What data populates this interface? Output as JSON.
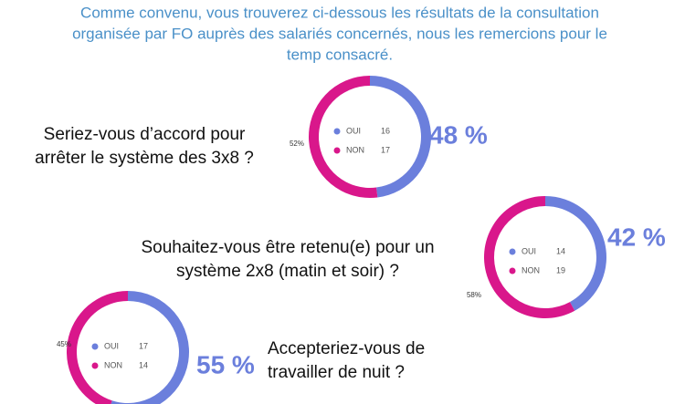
{
  "intro": [
    "Comme convenu, vous trouverez ci-dessous les résultats de la consultation",
    "organisée par FO auprès des salariés concernés, nous les remercions pour le",
    "temp consacré."
  ],
  "chart_data": [
    {
      "type": "donut",
      "question": [
        "Seriez-vous d’accord pour",
        "arrêter le système des 3x8 ?"
      ],
      "categories": [
        "OUI",
        "NON"
      ],
      "counts": [
        16,
        17
      ],
      "values": [
        48,
        52
      ],
      "value_labels": [
        "48 %",
        "52%"
      ],
      "colors": [
        "#6b7fdc",
        "#d9178b"
      ]
    },
    {
      "type": "donut",
      "question": [
        "Souhaitez-vous être retenu(e) pour un",
        "système 2x8 (matin et soir) ?"
      ],
      "categories": [
        "OUI",
        "NON"
      ],
      "counts": [
        14,
        19
      ],
      "values": [
        42,
        58
      ],
      "value_labels": [
        "42 %",
        "58%"
      ],
      "colors": [
        "#6b7fdc",
        "#d9178b"
      ]
    },
    {
      "type": "donut",
      "question": [
        "Accepteriez-vous de",
        "travailler de nuit ?"
      ],
      "categories": [
        "OUI",
        "NON"
      ],
      "counts": [
        17,
        14
      ],
      "values": [
        55,
        45
      ],
      "value_labels": [
        "55 %",
        "45%"
      ],
      "colors": [
        "#6b7fdc",
        "#d9178b"
      ]
    }
  ]
}
